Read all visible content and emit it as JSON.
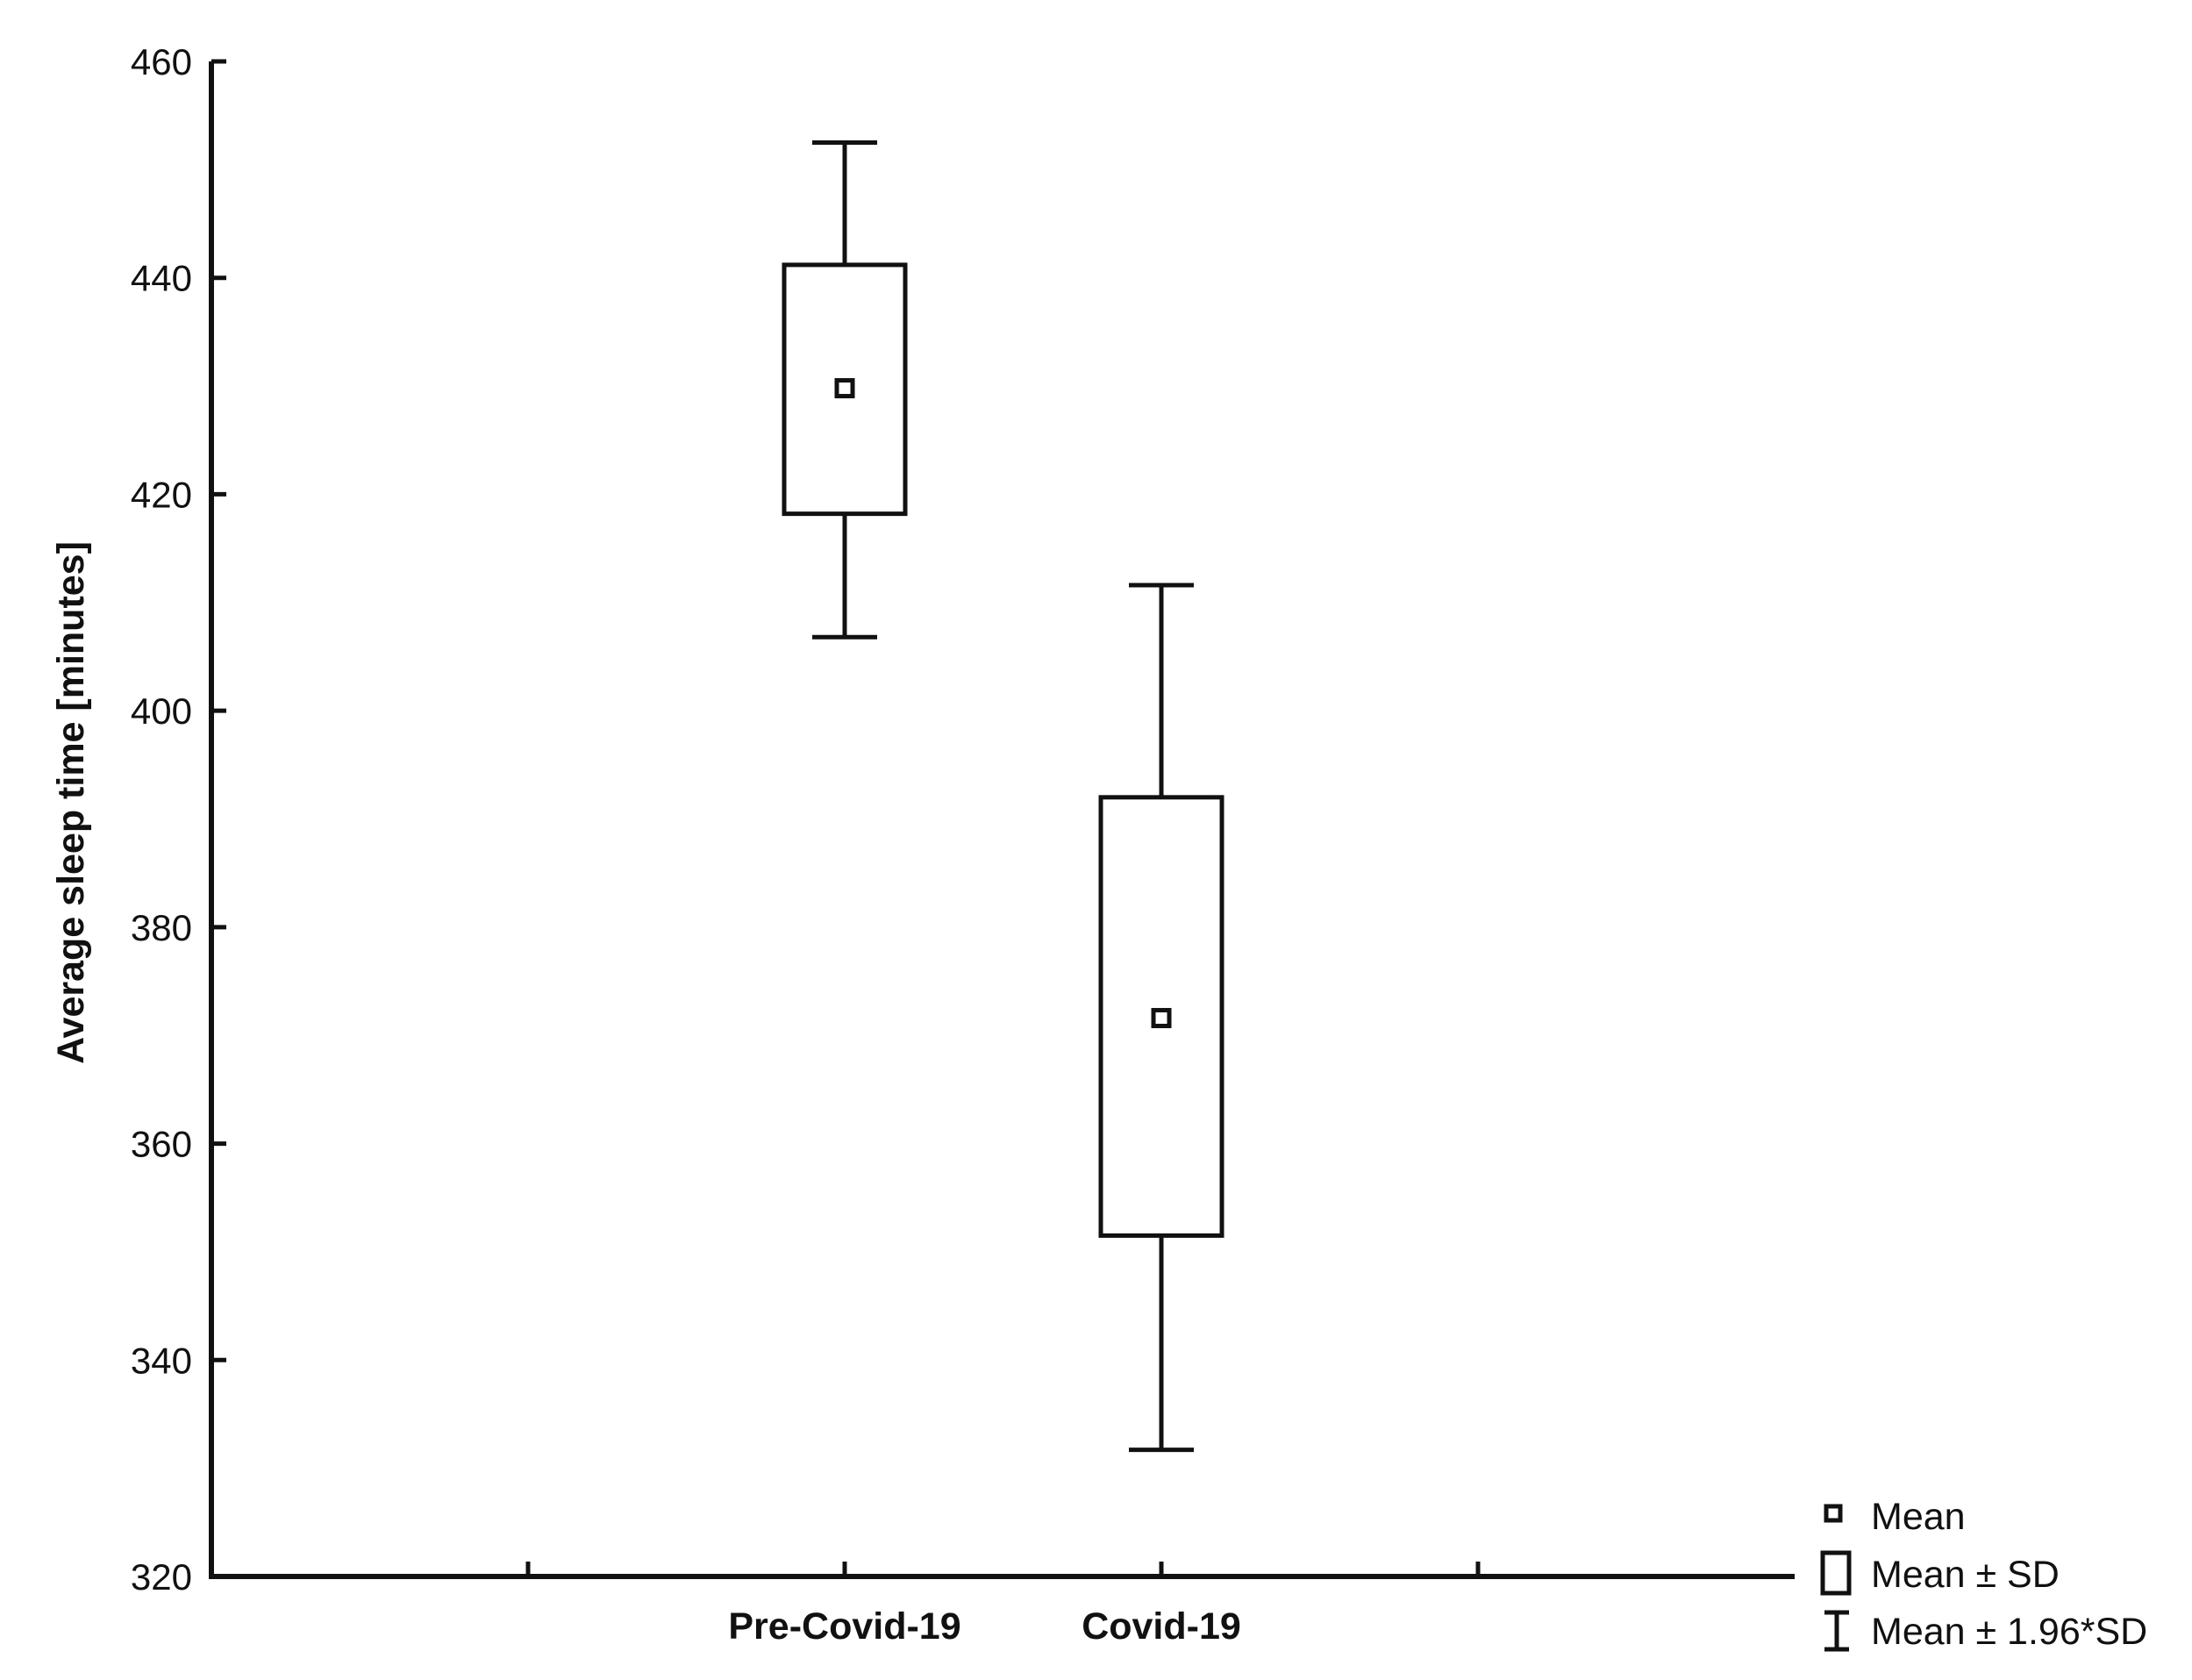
{
  "chart_data": {
    "type": "box",
    "categories": [
      "Pre-Covid-19",
      "Covid-19"
    ],
    "boxes": [
      {
        "category": "Pre-Covid-19",
        "mean": 429.8,
        "sd_low": 418.2,
        "sd_high": 441.2,
        "ci_low": 406.8,
        "ci_high": 452.5
      },
      {
        "category": "Covid-19",
        "mean": 371.6,
        "sd_low": 351.5,
        "sd_high": 392.0,
        "ci_low": 331.7,
        "ci_high": 411.6
      }
    ],
    "ylabel": "Average sleep time [minutes]",
    "xlabel": "",
    "ylim": [
      320,
      460
    ],
    "yticks": [
      "320",
      "340",
      "360",
      "380",
      "400",
      "420",
      "440",
      "460"
    ],
    "grid": false,
    "legend": {
      "placement": "bottom-right",
      "entries": [
        "Mean",
        "Mean ± SD",
        "Mean ± 1.96*SD"
      ]
    }
  }
}
